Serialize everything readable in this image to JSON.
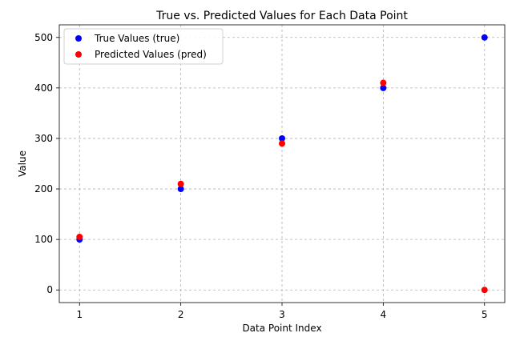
{
  "chart_data": {
    "type": "scatter",
    "title": "True vs. Predicted Values for Each Data Point",
    "xlabel": "Data Point Index",
    "ylabel": "Value",
    "x": [
      1,
      2,
      3,
      4,
      5
    ],
    "xlim": [
      0.8,
      5.2
    ],
    "ylim": [
      -25,
      525
    ],
    "xticks": [
      1,
      2,
      3,
      4,
      5
    ],
    "yticks": [
      0,
      100,
      200,
      300,
      400,
      500
    ],
    "grid": true,
    "legend_position": "upper-left",
    "series": [
      {
        "name": "True Values (true)",
        "color": "#0000ff",
        "values": [
          100,
          200,
          300,
          400,
          500
        ]
      },
      {
        "name": "Predicted Values (pred)",
        "color": "#ff0000",
        "values": [
          105,
          210,
          290,
          410,
          0
        ]
      }
    ]
  }
}
